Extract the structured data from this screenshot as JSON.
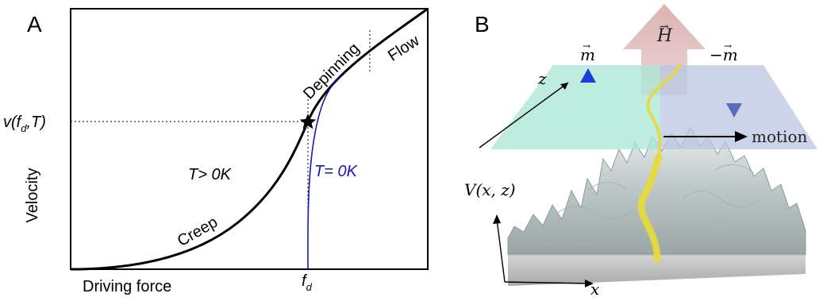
{
  "panel_a": {
    "letter": "A",
    "xlabel": "Driving force",
    "ylabel": "Velocity",
    "ytick_prefix": "v(f",
    "ytick_sub": "d",
    "ytick_suffix": ",T)",
    "xtick_main": "f",
    "xtick_sub": "d",
    "regions": {
      "creep": "Creep",
      "depinning": "Depinning",
      "flow": "Flow"
    },
    "curve_labels": {
      "t_positive": "T> 0K",
      "t_zero": "T= 0K"
    },
    "colors": {
      "t_positive": "#000000",
      "t_zero": "#1a1aa8"
    }
  },
  "panel_b": {
    "letter": "B",
    "field_label": "H",
    "m_up_label": "m",
    "m_down_label": "−m",
    "z_label": "z",
    "x_label": "x",
    "potential_label": "V(x, z)",
    "motion_label": "motion",
    "colors": {
      "field_arrow": "#d9a9a9",
      "left_plane": "#a8e6d4",
      "right_plane": "#b9c6e2",
      "m_up": "#1a3fd6",
      "m_down": "#2a4ab0",
      "wall": "#e6db3c",
      "landscape": "#cfd6d6",
      "base": "#c9c9c9"
    }
  }
}
